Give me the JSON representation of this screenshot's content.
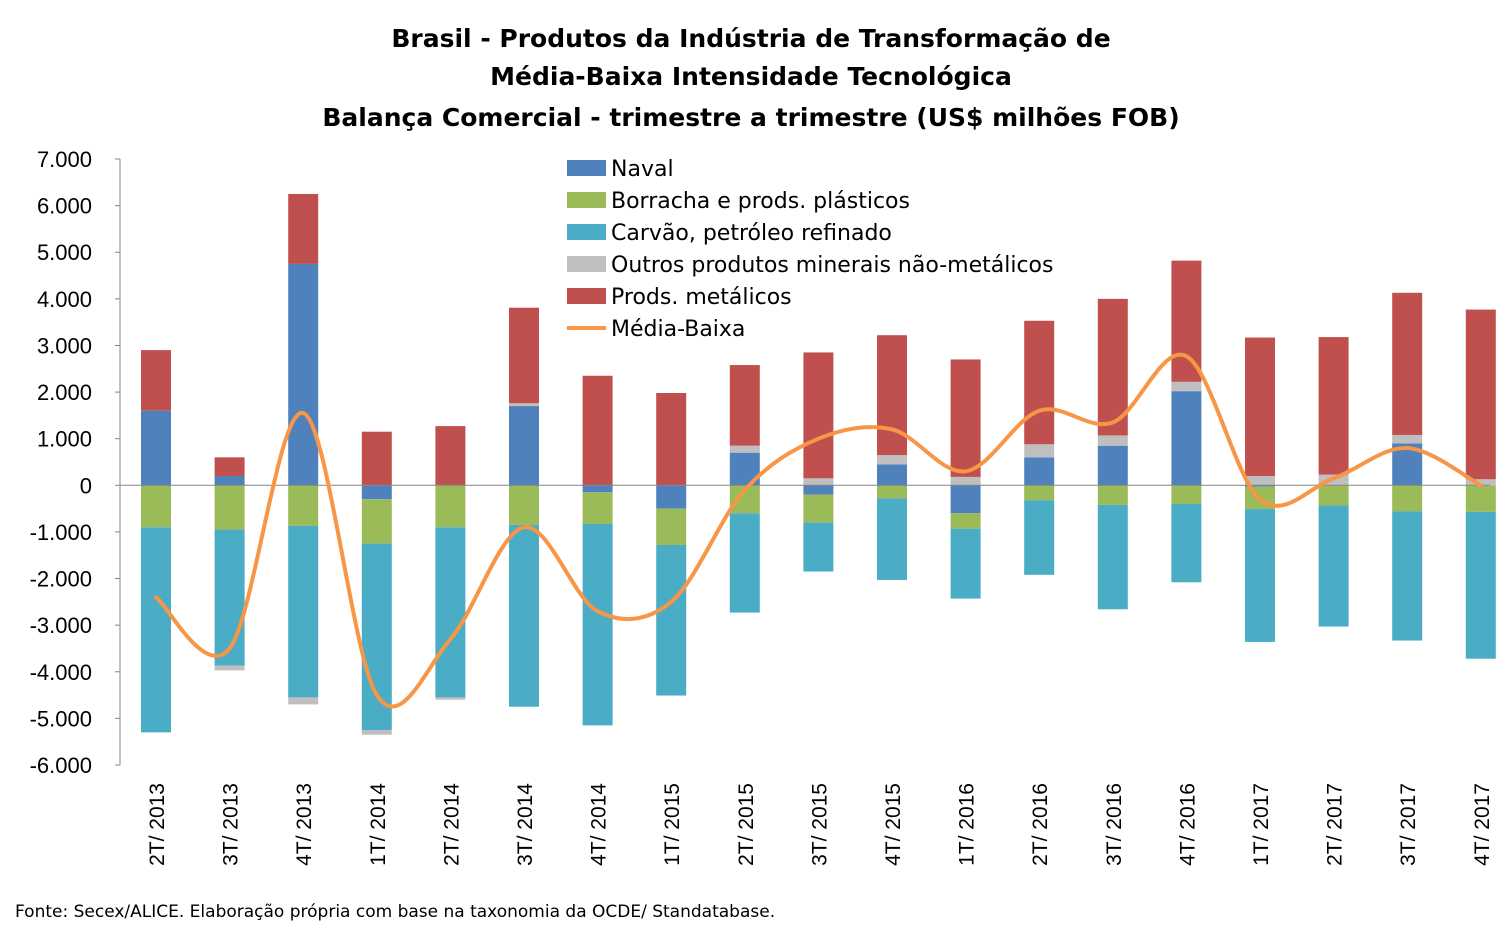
{
  "chart_data": {
    "type": "bar",
    "stacked": true,
    "title": [
      "Brasil - Produtos da Indústria de Transformação de",
      "Média-Baixa Intensidade Tecnológica",
      "Balança Comercial - trimestre a trimestre (US$ milhões FOB)"
    ],
    "xlabel": "",
    "ylabel": "",
    "ylim": [
      -6000,
      7000
    ],
    "yticks": [
      7000,
      6000,
      5000,
      4000,
      3000,
      2000,
      1000,
      0,
      -1000,
      -2000,
      -3000,
      -4000,
      -5000,
      -6000
    ],
    "ytick_labels": [
      "7.000",
      "6.000",
      "5.000",
      "4.000",
      "3.000",
      "2.000",
      "1.000",
      "0",
      "-1.000",
      "-2.000",
      "-3.000",
      "-4.000",
      "-5.000",
      "-6.000"
    ],
    "grid": false,
    "legend_position": "top-center",
    "categories": [
      "2T/ 2013",
      "3T/ 2013",
      "4T/ 2013",
      "1T/ 2014",
      "2T/ 2014",
      "3T/ 2014",
      "4T/ 2014",
      "1T/ 2015",
      "2T/ 2015",
      "3T/ 2015",
      "4T/ 2015",
      "1T/ 2016",
      "2T/ 2016",
      "3T/ 2016",
      "4T/ 2016",
      "1T/ 2017",
      "2T/ 2017",
      "3T/ 2017",
      "4T/ 2017"
    ],
    "series": [
      {
        "name": "Naval",
        "color": "#4f81bd",
        "values": [
          1600,
          200,
          4750,
          -300,
          0,
          1700,
          -150,
          -500,
          700,
          -200,
          450,
          -600,
          600,
          850,
          2020,
          -30,
          -10,
          900,
          -10
        ]
      },
      {
        "name": "Borracha e prods. plásticos",
        "color": "#9bbb59",
        "values": [
          -900,
          -950,
          -870,
          -950,
          -900,
          -850,
          -680,
          -780,
          -600,
          -600,
          -280,
          -330,
          -320,
          -420,
          -400,
          -480,
          -420,
          -560,
          -560
        ]
      },
      {
        "name": "Carvão, petróleo refinado",
        "color": "#4bacc6",
        "values": [
          -4400,
          -2920,
          -3680,
          -4000,
          -3650,
          -3900,
          -4320,
          -3230,
          -2130,
          -1050,
          -1750,
          -1500,
          -1600,
          -2240,
          -1680,
          -2850,
          -2600,
          -2770,
          -3150
        ]
      },
      {
        "name": "Outros produtos minerais não-metálicos",
        "color": "#bfbfbf",
        "values": [
          0,
          -100,
          -150,
          -100,
          -50,
          60,
          0,
          0,
          150,
          150,
          200,
          180,
          280,
          220,
          200,
          200,
          230,
          180,
          130
        ]
      },
      {
        "name": "Prods. metálicos",
        "color": "#c0504d",
        "values": [
          1300,
          400,
          1500,
          1150,
          1270,
          2050,
          2350,
          1980,
          1730,
          2700,
          2570,
          2520,
          2650,
          2930,
          2600,
          2970,
          2950,
          3050,
          3640
        ]
      }
    ],
    "line_series": {
      "name": "Média-Baixa",
      "color": "#f79646",
      "values": [
        -2400,
        -3500,
        1550,
        -4500,
        -3300,
        -900,
        -2700,
        -2500,
        -100,
        1000,
        1200,
        300,
        1600,
        1350,
        2770,
        -300,
        150,
        800,
        0
      ]
    },
    "source": "Fonte: Secex/ALICE. Elaboração própria com base na taxonomia da OCDE/ Standatabase."
  }
}
